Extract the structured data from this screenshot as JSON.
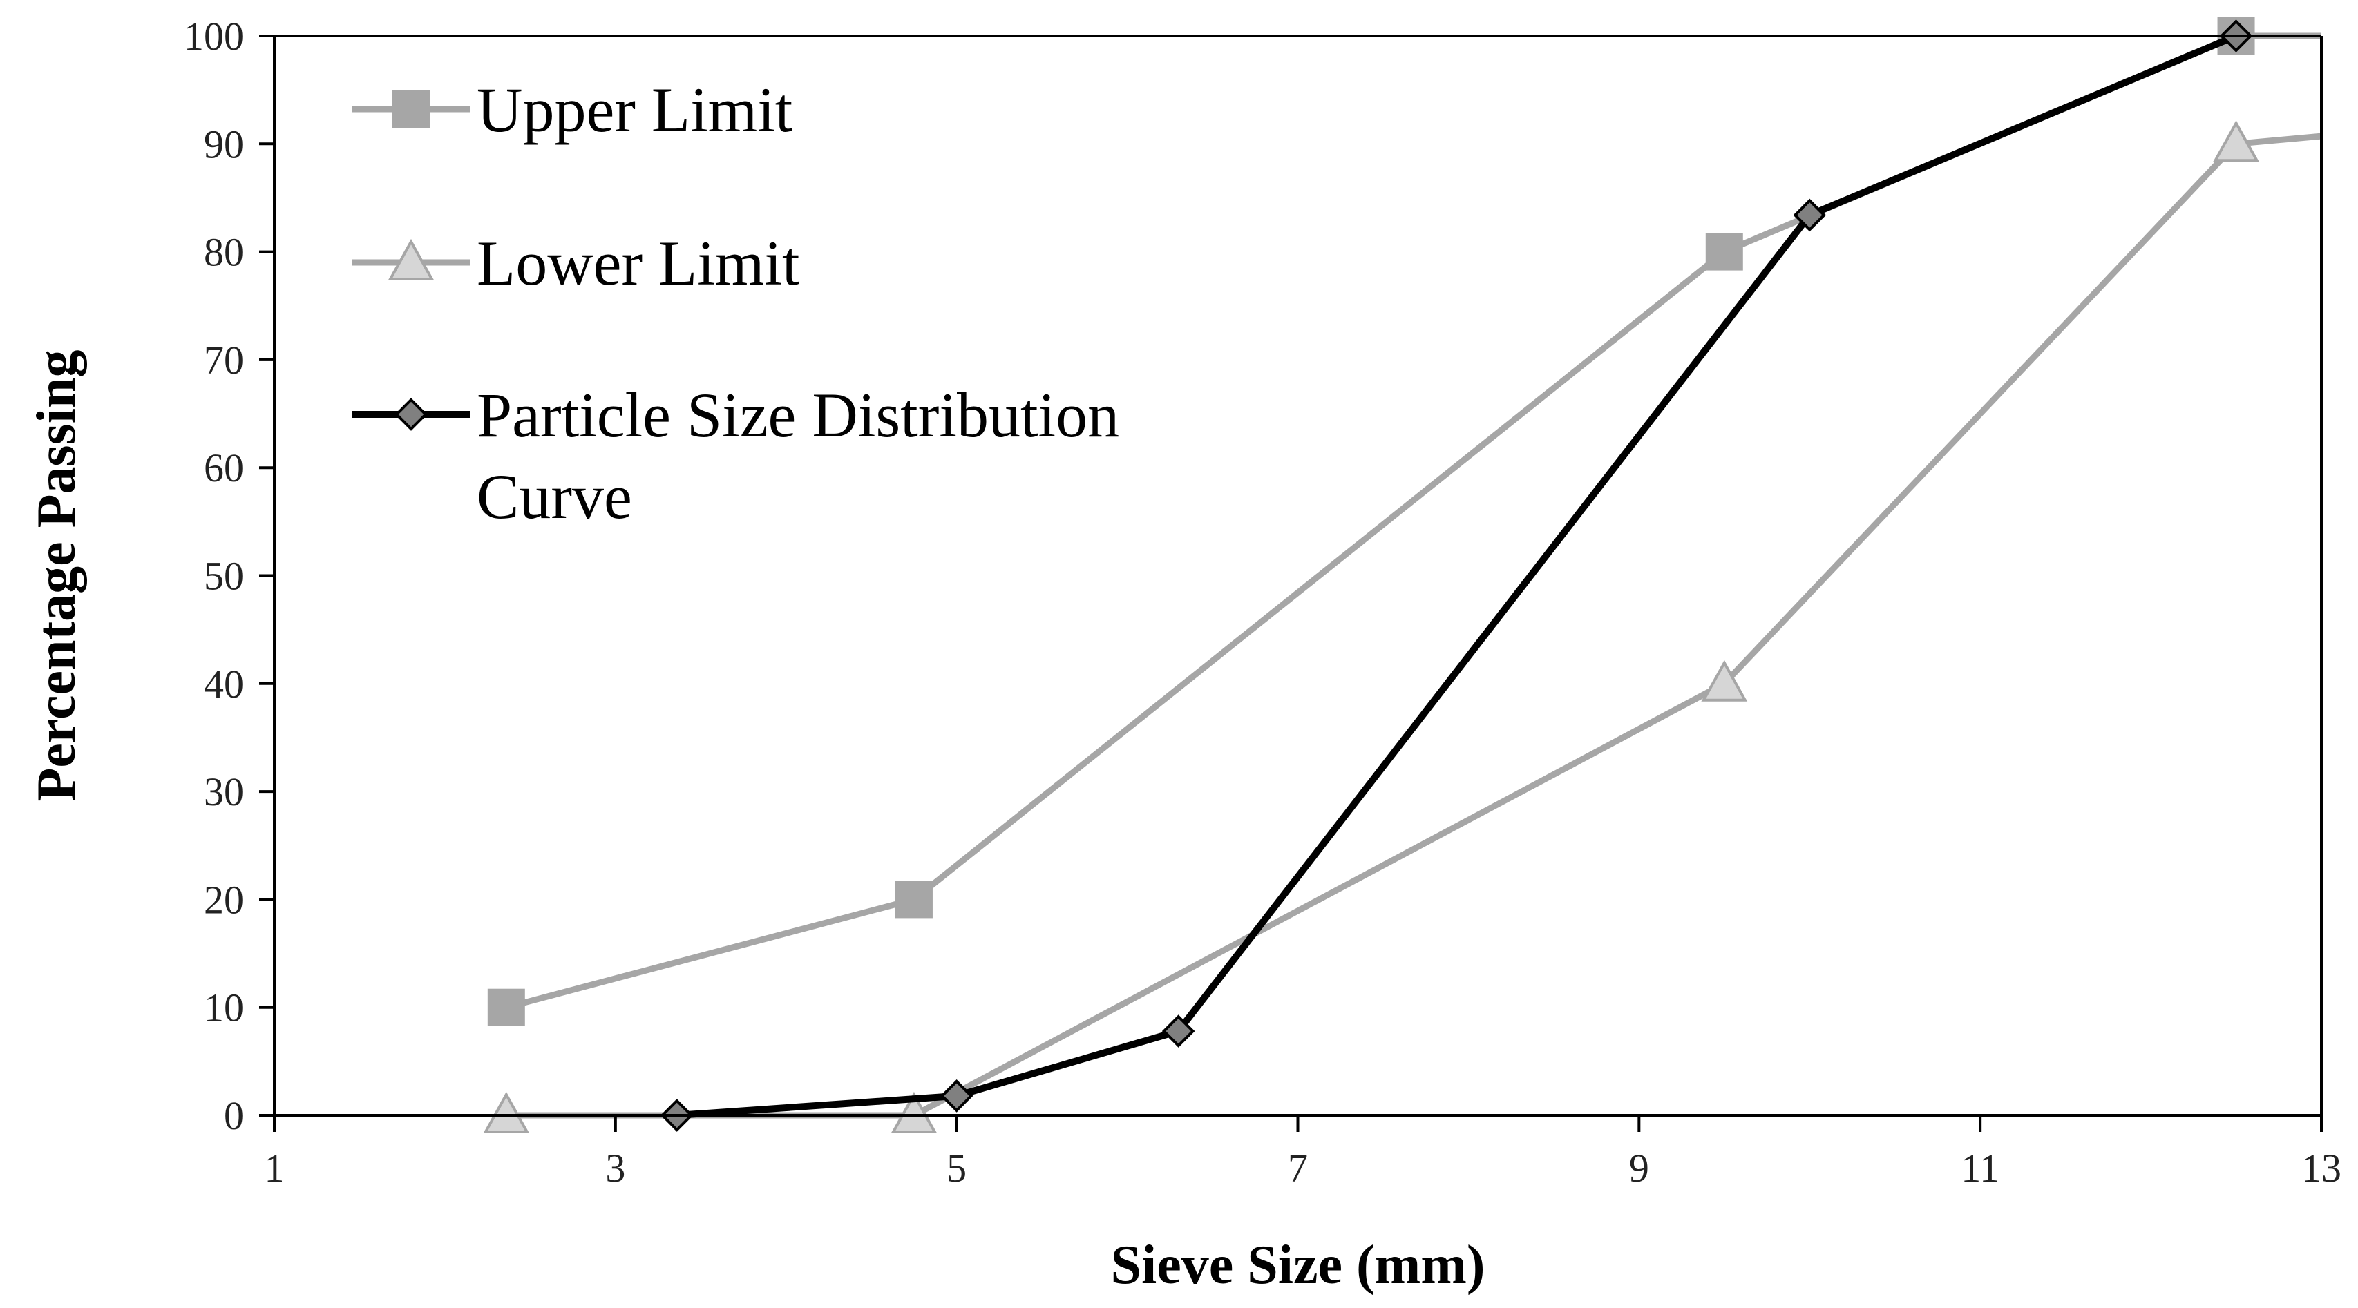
{
  "chart_data": {
    "type": "line",
    "title": "",
    "xlabel": "Sieve Size (mm)",
    "ylabel": "Percentage Passing",
    "xlim": [
      1,
      13
    ],
    "ylim": [
      0,
      100
    ],
    "x_ticks": [
      1,
      3,
      5,
      7,
      9,
      11,
      13
    ],
    "y_ticks": [
      0,
      10,
      20,
      30,
      40,
      50,
      60,
      70,
      80,
      90,
      100
    ],
    "grid": false,
    "legend_position": "top-left",
    "series": [
      {
        "name": "Upper Limit",
        "marker": "square",
        "color": "#a6a6a6",
        "x": [
          2.36,
          4.75,
          9.5,
          12.5,
          13.2
        ],
        "y": [
          10,
          20,
          80,
          100,
          100
        ]
      },
      {
        "name": "Lower Limit",
        "marker": "triangle",
        "color": "#a6a6a6",
        "x": [
          2.36,
          4.75,
          9.5,
          12.5,
          13.2
        ],
        "y": [
          0,
          0,
          40,
          90,
          91
        ]
      },
      {
        "name": "Particle Size Distribution Curve",
        "legend_lines": [
          "Particle Size Distribution",
          "Curve"
        ],
        "marker": "diamond",
        "color": "#000000",
        "marker_fill": "#808080",
        "x": [
          3.36,
          5.0,
          6.3,
          10.0,
          12.5
        ],
        "y": [
          0,
          1.8,
          7.8,
          83.4,
          100
        ]
      }
    ]
  }
}
